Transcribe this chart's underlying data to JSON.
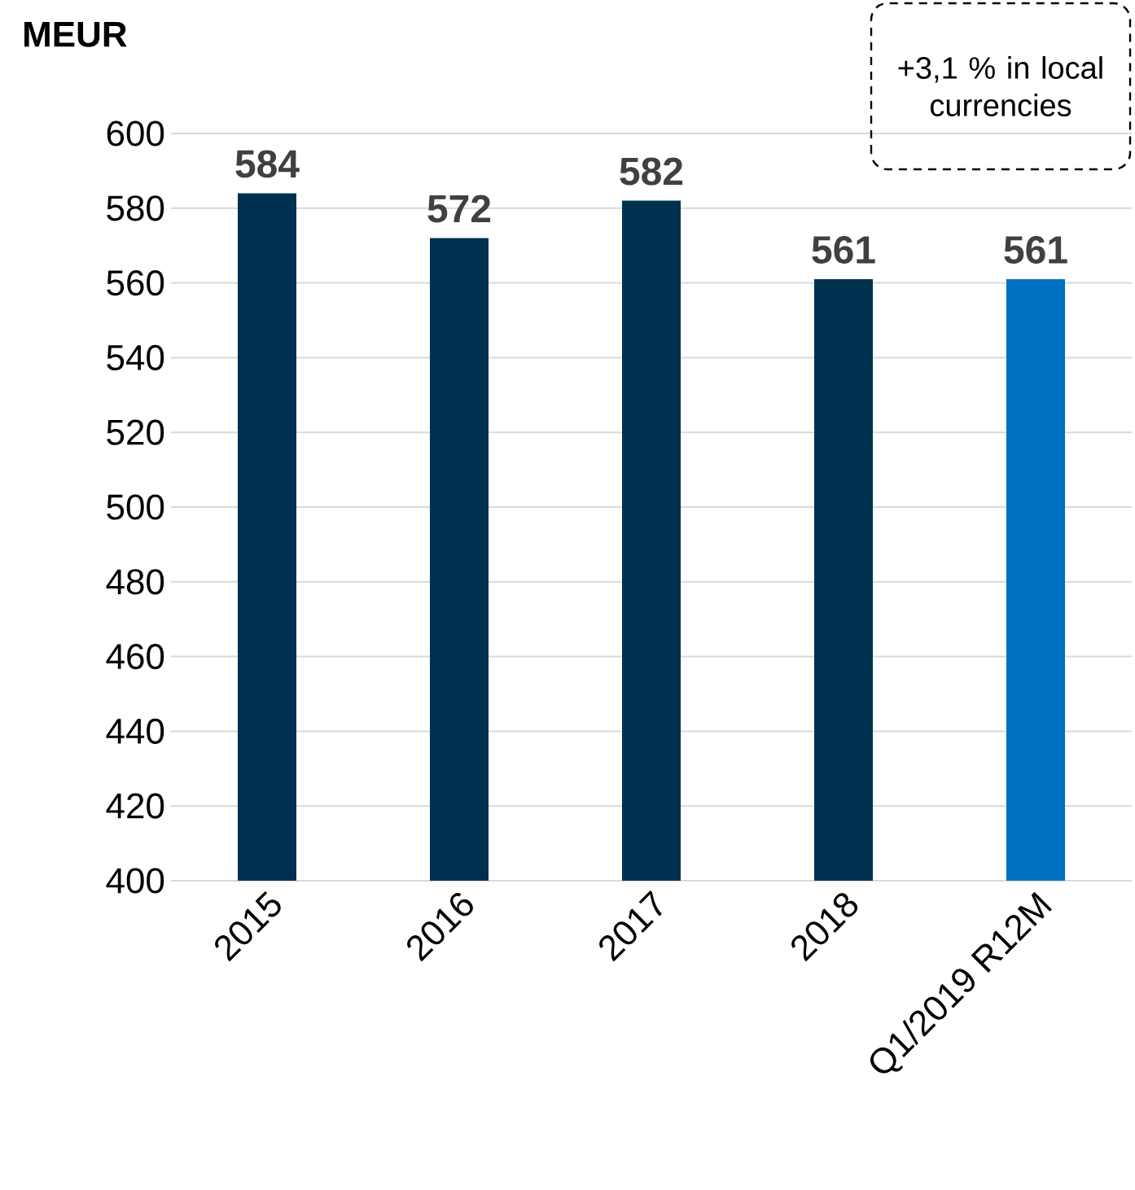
{
  "chart_data": {
    "type": "bar",
    "title": "MEUR",
    "categories": [
      "2015",
      "2016",
      "2017",
      "2018",
      "Q1/2019 R12M"
    ],
    "values": [
      584,
      572,
      582,
      561,
      561
    ],
    "colors": [
      "#003050",
      "#003050",
      "#003050",
      "#003050",
      "#0070c0"
    ],
    "ylim": [
      400,
      600
    ],
    "yticks": [
      400,
      420,
      440,
      460,
      480,
      500,
      520,
      540,
      560,
      580,
      600
    ],
    "grid": "y",
    "data_labels": true,
    "annotations": [
      "+3,1 % in local currencies"
    ]
  }
}
